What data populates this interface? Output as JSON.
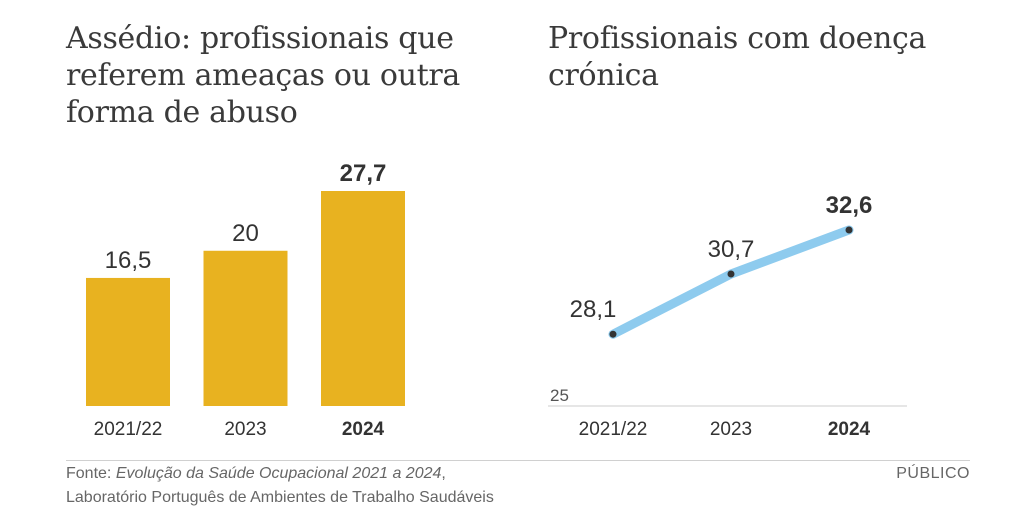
{
  "charts": [
    {
      "title": "Assédio: profissionais que referem ameaças ou outra forma de abuso"
    },
    {
      "title": "Profissionais com doença crónica"
    }
  ],
  "chart_data": [
    {
      "type": "bar",
      "title": "Assédio: profissionais que referem ameaças ou outra forma de abuso",
      "categories": [
        "2021/22",
        "2023",
        "2024"
      ],
      "values": [
        16.5,
        20,
        27.7
      ],
      "value_labels": [
        "16,5",
        "20",
        "27,7"
      ],
      "highlight_index": 2,
      "ylim": [
        0,
        27.7
      ],
      "grid": false,
      "color": "#e8b220"
    },
    {
      "type": "line",
      "title": "Profissionais com doença crónica",
      "categories": [
        "2021/22",
        "2023",
        "2024"
      ],
      "values": [
        28.1,
        30.7,
        32.6
      ],
      "value_labels": [
        "28,1",
        "30,7",
        "32,6"
      ],
      "highlight_index": 2,
      "baseline_label": "25",
      "ylim": [
        25,
        32.6
      ],
      "grid": false,
      "color": "#8ecbee"
    }
  ],
  "footer": {
    "prefix": "Fonte: ",
    "source_italic": "Evolução da Saúde Ocupacional 2021 a 2024",
    "source_suffix": ",",
    "line2": "Laboratório Português de Ambientes de Trabalho Saudáveis"
  },
  "brand": "PÚBLICO",
  "colors": {
    "bar": "#e8b220",
    "line": "#8ecbee",
    "dot": "#333333",
    "axis": "#cccccc"
  }
}
